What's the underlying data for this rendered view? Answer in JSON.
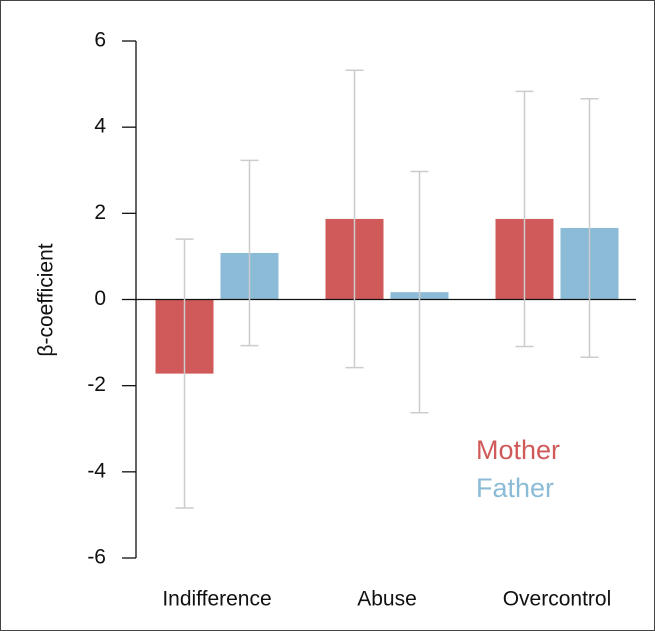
{
  "chart_data": {
    "type": "bar",
    "y_label": "β-coefficient",
    "categories": [
      "Indifference",
      "Abuse",
      "Overcontrol"
    ],
    "series": [
      {
        "name": "Mother",
        "color": "#d05a5a",
        "values": [
          -1.72,
          1.87,
          1.87
        ],
        "errors": [
          3.12,
          3.45,
          2.96
        ]
      },
      {
        "name": "Father",
        "color": "#8bbbd6",
        "values": [
          1.08,
          0.17,
          1.66
        ],
        "errors": [
          2.15,
          2.8,
          3.0
        ]
      }
    ],
    "ylim": [
      -6,
      6
    ],
    "yticks": [
      -6,
      -4,
      -2,
      0,
      2,
      4,
      6
    ],
    "legend": "lower-right"
  }
}
